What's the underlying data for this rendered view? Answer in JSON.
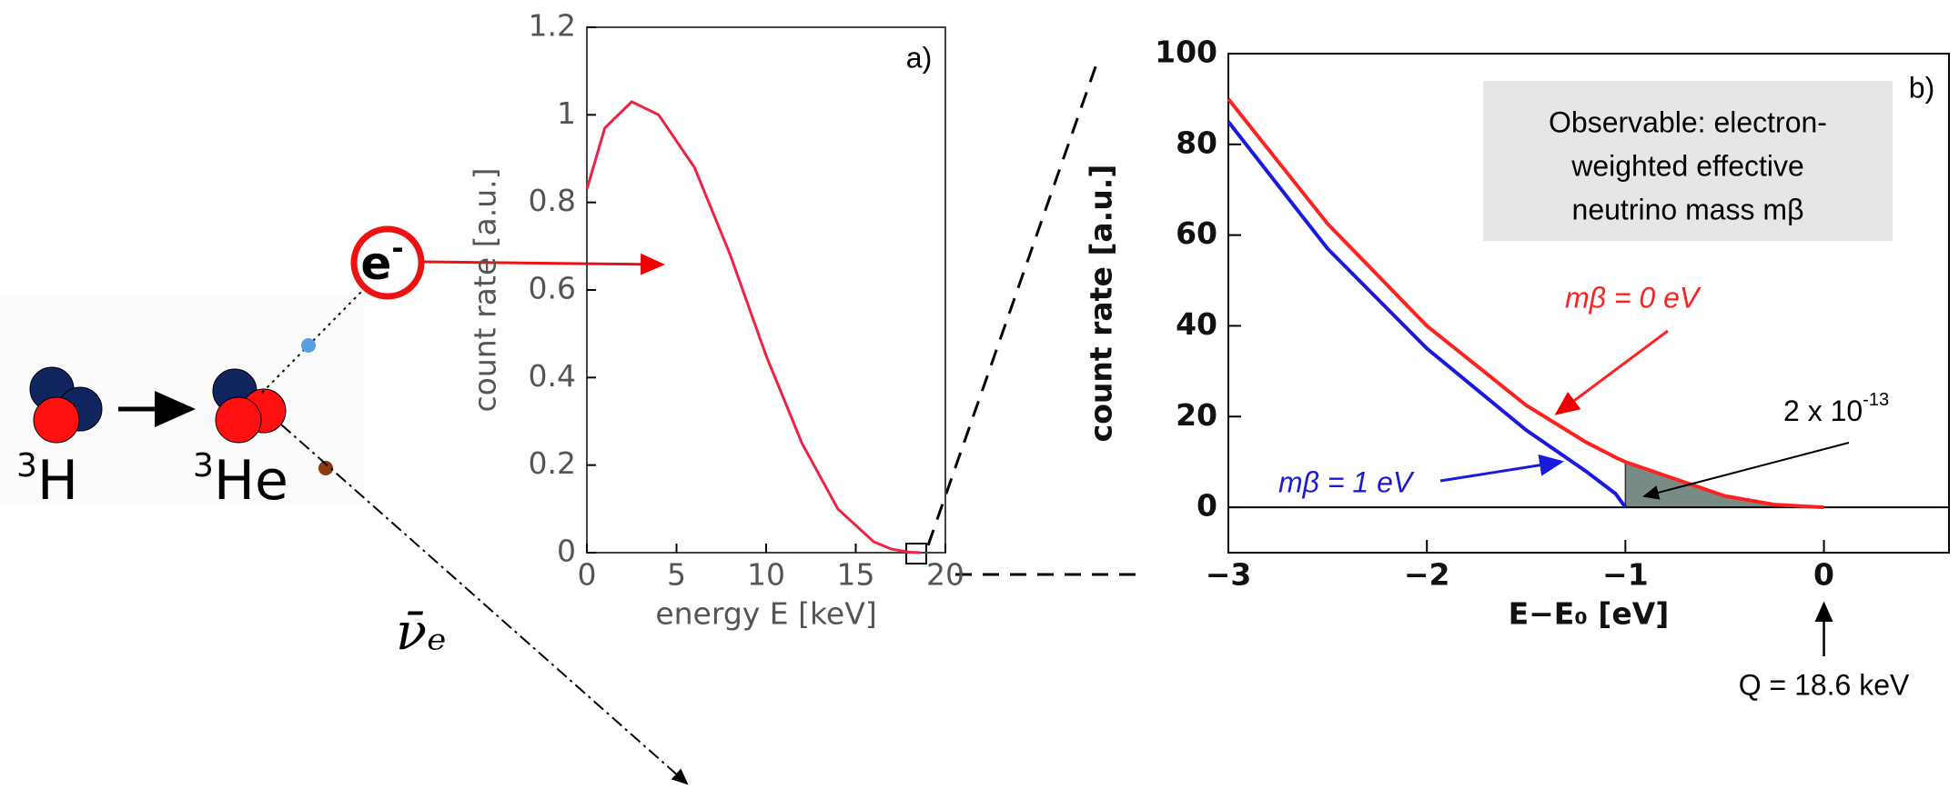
{
  "diagram": {
    "parent": {
      "mass": "3",
      "symbol": "H"
    },
    "daughter": {
      "mass": "3",
      "symbol": "He"
    },
    "electron": {
      "symbol": "e",
      "charge": "-"
    },
    "antineutrino": "ν̄ₑ"
  },
  "chart_data": [
    {
      "type": "line",
      "panel": "a)",
      "xlabel": "energy E  [keV]",
      "ylabel": "count rate  [a.u.]",
      "x": [
        0,
        1,
        2.5,
        4,
        6,
        8,
        10,
        12,
        14,
        16,
        17,
        18,
        18.6
      ],
      "values": [
        0.83,
        0.97,
        1.03,
        1.0,
        0.88,
        0.68,
        0.45,
        0.25,
        0.1,
        0.025,
        0.008,
        0.001,
        0
      ],
      "color": "#ee2244",
      "xlim": [
        0,
        20
      ],
      "xticks": [
        0,
        5,
        10,
        15,
        20
      ],
      "ylim": [
        0,
        1.2
      ],
      "yticks": [
        0,
        0.2,
        0.4,
        0.6,
        0.8,
        1,
        1.2
      ]
    },
    {
      "type": "line",
      "panel": "b)",
      "xlabel": "E−E₀  [eV]",
      "ylabel": "count rate  [a.u.]",
      "x": [
        -3,
        -2.5,
        -2,
        -1.5,
        -1.2,
        -1.05,
        -1,
        -0.5,
        -0.25,
        0
      ],
      "series": [
        {
          "name": "mβ  = 0 eV",
          "color": "#ff2020",
          "values": [
            90,
            62.5,
            40,
            22.5,
            14.4,
            11,
            10,
            2.5,
            0.6,
            0
          ]
        },
        {
          "name": "mβ = 1 eV",
          "color": "#1a1adc",
          "values": [
            85,
            57,
            35,
            17,
            8,
            3,
            0,
            null,
            null,
            null
          ]
        }
      ],
      "xlim": [
        -3,
        0.63
      ],
      "xticks": [
        {
          "value": -3,
          "label": "−3"
        },
        {
          "value": -2,
          "label": "−2"
        },
        {
          "value": -1,
          "label": "−1"
        },
        0
      ],
      "ylim": [
        -10,
        100
      ],
      "yticks": [
        0,
        20,
        40,
        60,
        80,
        100
      ],
      "box": [
        "Observable: electron-",
        "weighted effective",
        "neutrino mass mβ"
      ],
      "shaded_label": {
        "text": "2 x 10",
        "exponent": "-13"
      },
      "q_label": "Q = 18.6 keV"
    }
  ]
}
